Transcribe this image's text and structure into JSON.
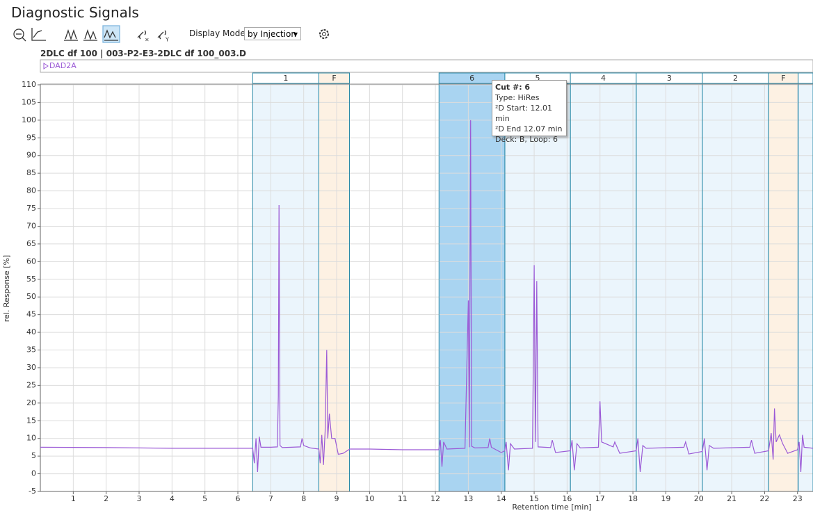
{
  "title": "Diagnostic Signals",
  "toolbar": {
    "display_mode_label": "Display Mode",
    "display_mode_value": "by Injection"
  },
  "file_label": "2DLC df 100 | 003-P2-E3-2DLC df 100_003.D",
  "signal_label": "DAD2A",
  "tooltip": {
    "heading": "Cut #: 6",
    "lines": [
      "Type: HiRes",
      "²D Start: 12.01 min",
      "²D End 12.07 min",
      "Deck: B, Loop: 6"
    ]
  },
  "chart_data": {
    "type": "line",
    "xlabel": "Retention time [min]",
    "ylabel": "rel. Response [%]",
    "xlim": [
      0,
      23.47
    ],
    "ylim": [
      -5,
      110
    ],
    "xticks": [
      1,
      2,
      3,
      4,
      5,
      6,
      7,
      8,
      9,
      10,
      11,
      12,
      13,
      14,
      15,
      16,
      17,
      18,
      19,
      20,
      21,
      22,
      23
    ],
    "yticks": [
      -5,
      0,
      5,
      10,
      15,
      20,
      25,
      30,
      35,
      40,
      45,
      50,
      55,
      60,
      65,
      70,
      75,
      80,
      85,
      90,
      95,
      100,
      105,
      110
    ],
    "grid": true,
    "color": "#9b59d6",
    "cuts": [
      {
        "label": "1",
        "start": 6.45,
        "end": 8.46,
        "kind": "cut"
      },
      {
        "label": "F",
        "start": 8.46,
        "end": 9.39,
        "kind": "flush"
      },
      {
        "label": "6",
        "start": 12.11,
        "end": 14.11,
        "kind": "selected"
      },
      {
        "label": "5",
        "start": 14.11,
        "end": 16.1,
        "kind": "cut"
      },
      {
        "label": "4",
        "start": 16.1,
        "end": 18.1,
        "kind": "cut"
      },
      {
        "label": "3",
        "start": 18.1,
        "end": 20.11,
        "kind": "cut"
      },
      {
        "label": "2",
        "start": 20.11,
        "end": 22.12,
        "kind": "cut"
      },
      {
        "label": "F",
        "start": 22.12,
        "end": 23.02,
        "kind": "flush"
      },
      {
        "label": null,
        "start": 23.02,
        "end": 23.47,
        "kind": "cut"
      }
    ],
    "x": [
      0,
      2,
      4,
      6,
      6.45,
      6.5,
      6.55,
      6.6,
      6.65,
      6.7,
      7.0,
      7.2,
      7.23,
      7.25,
      7.28,
      7.35,
      7.9,
      7.95,
      8.0,
      8.2,
      8.46,
      8.5,
      8.55,
      8.6,
      8.65,
      8.7,
      8.73,
      8.78,
      8.85,
      8.95,
      9.05,
      9.2,
      9.4,
      10,
      11,
      12.1,
      12.15,
      12.2,
      12.25,
      12.35,
      12.9,
      13.0,
      13.03,
      13.07,
      13.1,
      13.2,
      13.6,
      13.65,
      13.7,
      14.0,
      14.11,
      14.15,
      14.22,
      14.28,
      14.4,
      14.95,
      15.0,
      15.04,
      15.08,
      15.12,
      15.5,
      15.55,
      15.65,
      16.1,
      16.15,
      16.22,
      16.3,
      16.4,
      16.95,
      17.0,
      17.05,
      17.4,
      17.45,
      17.6,
      18.1,
      18.15,
      18.22,
      18.3,
      18.4,
      19.55,
      19.6,
      19.7,
      20.11,
      20.17,
      20.25,
      20.32,
      20.45,
      21.55,
      21.6,
      21.7,
      22.12,
      22.2,
      22.26,
      22.3,
      22.35,
      22.45,
      22.55,
      22.7,
      23.0,
      23.05,
      23.1,
      23.15,
      23.2,
      23.47
    ],
    "values": [
      7.5,
      7.4,
      7.2,
      7.2,
      7.2,
      3,
      10,
      0.5,
      10.5,
      7.5,
      7.5,
      7.6,
      22,
      76,
      8,
      7.4,
      7.6,
      10,
      8,
      7.3,
      7.0,
      3,
      11,
      2.5,
      12,
      35,
      10,
      17,
      10,
      10,
      5.5,
      5.8,
      7,
      7.0,
      6.8,
      6.8,
      9.5,
      2,
      9,
      7,
      7.2,
      49,
      7.5,
      100,
      7.8,
      7.3,
      7.4,
      10,
      7.5,
      6.0,
      6.5,
      9,
      1,
      8.5,
      7,
      7.2,
      59,
      9,
      54.5,
      7.6,
      7.4,
      9.5,
      6.0,
      6.5,
      9.5,
      1,
      8.5,
      7.3,
      7.5,
      20.5,
      9,
      7.6,
      9,
      5.8,
      6.5,
      10,
      0.5,
      8,
      7.2,
      7.5,
      9,
      5.6,
      6.3,
      10,
      1,
      8,
      7.2,
      7.5,
      9.5,
      5.8,
      6.5,
      11.5,
      4,
      18.5,
      9,
      11,
      8.5,
      5.8,
      6.8,
      9,
      0.5,
      11,
      7.5,
      7.2
    ]
  }
}
